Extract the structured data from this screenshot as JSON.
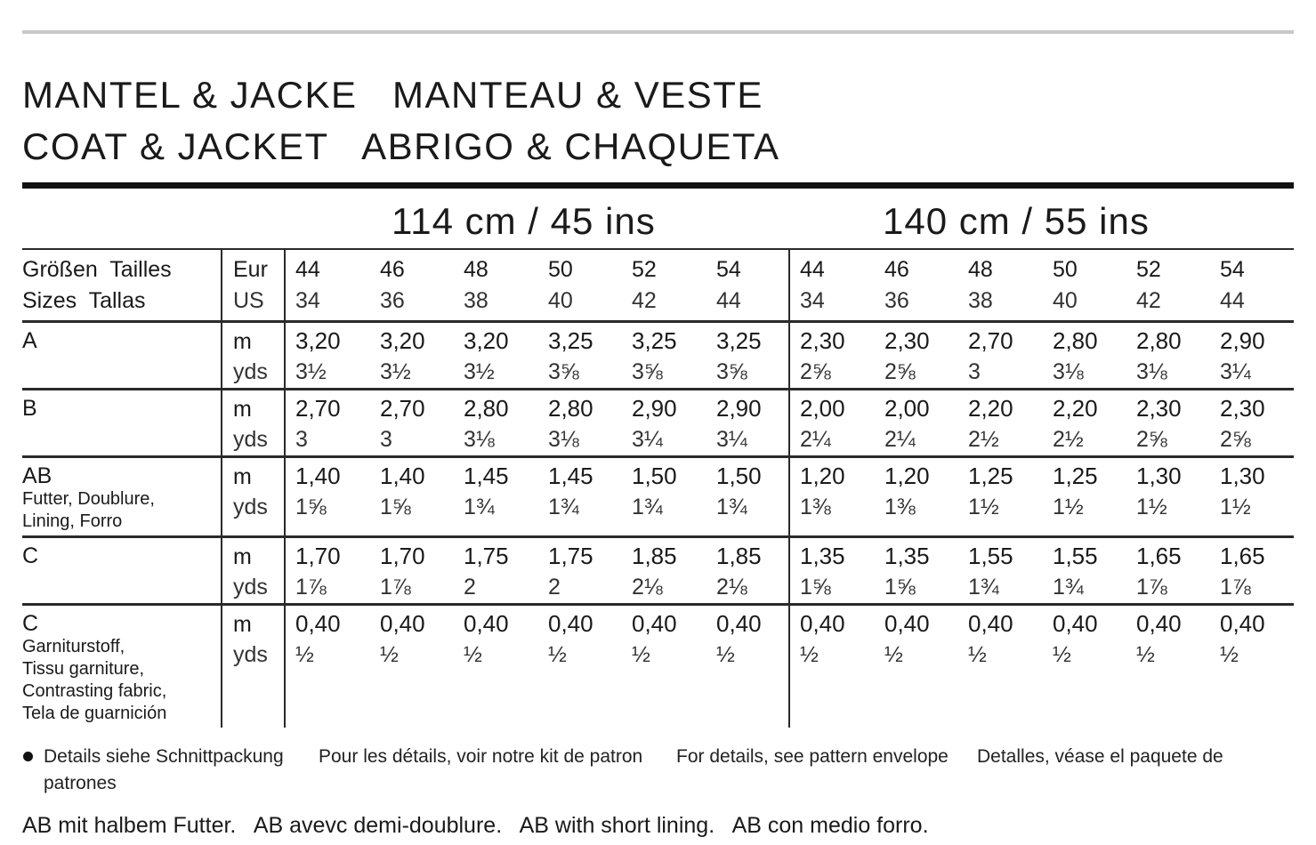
{
  "title": {
    "line1": "MANTEL & JACKE   MANTEAU & VESTE",
    "line2": "COAT & JACKET   ABRIGO & CHAQUETA"
  },
  "widths": [
    "114 cm / 45 ins",
    "140 cm / 55 ins"
  ],
  "size_header": {
    "label1": "Größen  Tailles",
    "label2": "Sizes  Tallas",
    "eur_label": "Eur",
    "us_label": "US",
    "eur": [
      "44",
      "46",
      "48",
      "50",
      "52",
      "54"
    ],
    "us": [
      "34",
      "36",
      "38",
      "40",
      "42",
      "44"
    ]
  },
  "rows": [
    {
      "label": "A",
      "sub": "",
      "unit_m": "m",
      "unit_yds": "yds",
      "m": [
        "3,20",
        "3,20",
        "3,20",
        "3,25",
        "3,25",
        "3,25",
        "2,30",
        "2,30",
        "2,70",
        "2,80",
        "2,80",
        "2,90"
      ],
      "yds": [
        "3½",
        "3½",
        "3½",
        "3⅝",
        "3⅝",
        "3⅝",
        "2⅝",
        "2⅝",
        "3",
        "3⅛",
        "3⅛",
        "3¼"
      ]
    },
    {
      "label": "B",
      "sub": "",
      "unit_m": "m",
      "unit_yds": "yds",
      "m": [
        "2,70",
        "2,70",
        "2,80",
        "2,80",
        "2,90",
        "2,90",
        "2,00",
        "2,00",
        "2,20",
        "2,20",
        "2,30",
        "2,30"
      ],
      "yds": [
        "3",
        "3",
        "3⅛",
        "3⅛",
        "3¼",
        "3¼",
        "2¼",
        "2¼",
        "2½",
        "2½",
        "2⅝",
        "2⅝"
      ]
    },
    {
      "label": "AB",
      "sub": "Futter, Doublure,\nLining, Forro",
      "unit_m": "m",
      "unit_yds": "yds",
      "m": [
        "1,40",
        "1,40",
        "1,45",
        "1,45",
        "1,50",
        "1,50",
        "1,20",
        "1,20",
        "1,25",
        "1,25",
        "1,30",
        "1,30"
      ],
      "yds": [
        "1⅝",
        "1⅝",
        "1¾",
        "1¾",
        "1¾",
        "1¾",
        "1⅜",
        "1⅜",
        "1½",
        "1½",
        "1½",
        "1½"
      ]
    },
    {
      "label": "C",
      "sub": "",
      "unit_m": "m",
      "unit_yds": "yds",
      "m": [
        "1,70",
        "1,70",
        "1,75",
        "1,75",
        "1,85",
        "1,85",
        "1,35",
        "1,35",
        "1,55",
        "1,55",
        "1,65",
        "1,65"
      ],
      "yds": [
        "1⅞",
        "1⅞",
        "2",
        "2",
        "2⅛",
        "2⅛",
        "1⅝",
        "1⅝",
        "1¾",
        "1¾",
        "1⅞",
        "1⅞"
      ]
    },
    {
      "label": "C",
      "sub": "Garniturstoff,\nTissu garniture,\nContrasting fabric,\nTela de guarnición",
      "unit_m": "m",
      "unit_yds": "yds",
      "m": [
        "0,40",
        "0,40",
        "0,40",
        "0,40",
        "0,40",
        "0,40",
        "0,40",
        "0,40",
        "0,40",
        "0,40",
        "0,40",
        "0,40"
      ],
      "yds": [
        "½",
        "½",
        "½",
        "½",
        "½",
        "½",
        "½",
        "½",
        "½",
        "½",
        "½",
        "½"
      ]
    }
  ],
  "notes": {
    "de": "Details siehe Schnittpackung",
    "fr": "Pour les détails, voir notre kit de patron",
    "en": "For details, see pattern envelope",
    "es": "Detalles, véase el paquete de",
    "es2": "patrones"
  },
  "footer": "AB mit halbem Futter.   AB avevc demi-doublure.   AB with short lining.   AB con medio forro."
}
